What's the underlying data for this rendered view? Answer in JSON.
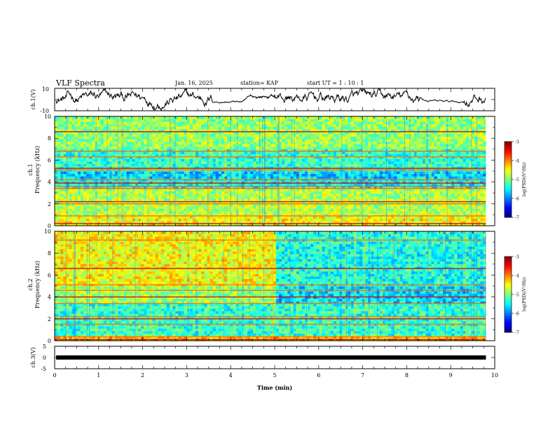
{
  "header": {
    "title": "VLF Spectra",
    "date": "Jan. 16, 2025",
    "station": "station= KAP",
    "start": "start  UT =   1 : 10 : 1"
  },
  "chart_data": [
    {
      "type": "line",
      "panel": "ch1-waveform",
      "ylabel": "ch.1(V)",
      "ylim": [
        -10,
        10
      ],
      "yticks": [
        "10",
        "-10"
      ],
      "xlim": [
        0,
        10
      ],
      "description_values_minutes": [
        0,
        9.8
      ]
    },
    {
      "type": "heatmap",
      "panel": "ch1-spectrogram",
      "ylabel_top": "ch.1",
      "ylabel": "Frequency (kHz)",
      "ylim": [
        0,
        10
      ],
      "yticks": [
        "0",
        "2",
        "4",
        "6",
        "8",
        "10"
      ],
      "xlim": [
        0,
        10
      ],
      "data_extent_min": 9.8,
      "bands_khz": [
        0.2,
        0.9,
        2.0,
        2.2,
        3.4,
        3.6,
        3.9,
        4.2,
        5.1,
        5.25,
        6.3,
        6.8,
        8.6
      ],
      "colorbar": {
        "label": "log(PSD)(V²/Hz)",
        "ticks": [
          "-3",
          "-4",
          "-5",
          "-6",
          "-7"
        ],
        "range": [
          -7,
          -3
        ]
      }
    },
    {
      "type": "heatmap",
      "panel": "ch2-spectrogram",
      "ylabel_top": "ch.2",
      "ylabel": "Frequency (kHz)",
      "ylim": [
        0,
        10
      ],
      "yticks": [
        "0",
        "2",
        "4",
        "6",
        "8",
        "10"
      ],
      "xlim": [
        0,
        10
      ],
      "data_extent_min": 9.8,
      "bands_khz": [
        0.1,
        0.35,
        1.5,
        2.0,
        2.2,
        3.4,
        4.0,
        4.6,
        5.1,
        6.6,
        9.2
      ],
      "colorbar": {
        "label": "log(PSD)(V²/Hz)",
        "ticks": [
          "-3",
          "-4",
          "-5",
          "-6",
          "-7"
        ],
        "range": [
          -7,
          -3
        ]
      }
    },
    {
      "type": "line",
      "panel": "ch3-waveform",
      "ylabel": "ch.3(V)",
      "ylim": [
        -5,
        5
      ],
      "yticks": [
        "5",
        "0",
        "-5"
      ],
      "xlim": [
        0,
        10
      ],
      "value_v": 0,
      "xlabel": "Time (min)",
      "xticks": [
        "0",
        "1",
        "2",
        "3",
        "4",
        "5",
        "6",
        "7",
        "8",
        "9",
        "10"
      ]
    }
  ]
}
